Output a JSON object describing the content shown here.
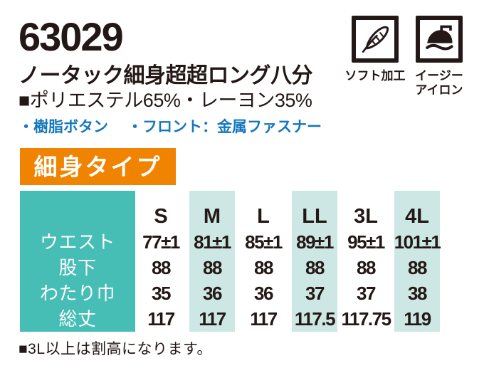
{
  "product": {
    "code": "63029",
    "title": "ノータック細身超超ロング八分",
    "materials": "■ポリエステル65%・レーヨン35%",
    "features": [
      "・樹脂ボタン",
      "・フロント：金属ファスナー"
    ],
    "badge": "細身タイプ",
    "note": "■3L以上は割高になります。"
  },
  "care_icons": [
    {
      "icon": "feather-icon",
      "label_lines": [
        "ソフト加工"
      ]
    },
    {
      "icon": "iron-icon",
      "label_lines": [
        "イージー",
        "アイロン"
      ]
    }
  ],
  "colors": {
    "ink": "#231815",
    "orange": "#F08300",
    "teal": "#46BDB5",
    "light_teal": "#CDE8E4",
    "blue": "#1577BD"
  },
  "chart_data": {
    "type": "table",
    "title": "細身タイプ サイズ表",
    "columns": [
      "S",
      "M",
      "L",
      "LL",
      "3L",
      "4L"
    ],
    "rows": [
      {
        "label": "ウエスト",
        "values": [
          "77±1",
          "81±1",
          "85±1",
          "89±1",
          "95±1",
          "101±1"
        ]
      },
      {
        "label": "股下",
        "values": [
          "88",
          "88",
          "88",
          "88",
          "88",
          "88"
        ]
      },
      {
        "label": "わたり巾",
        "values": [
          "35",
          "36",
          "36",
          "37",
          "37",
          "38"
        ]
      },
      {
        "label": "総丈",
        "values": [
          "117",
          "117",
          "117",
          "117.5",
          "117.75",
          "119"
        ]
      }
    ],
    "shaded_columns": [
      1,
      3,
      5
    ]
  }
}
